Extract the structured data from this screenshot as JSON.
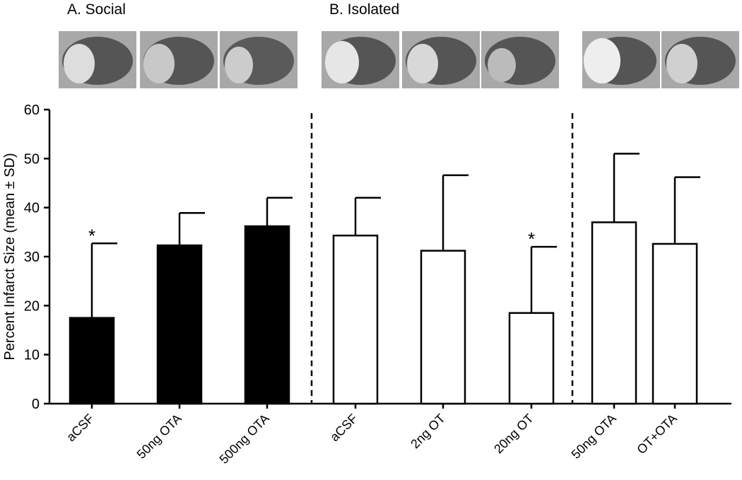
{
  "chart_data": {
    "type": "bar",
    "group_labels": [
      "A.  Social",
      "B.  Isolated"
    ],
    "y_label": "Percent Infarct Size (mean ± SD)",
    "categories": [
      "aCSF",
      "50ng OTA",
      "500ng OTA",
      "aCSF",
      "2ng OT",
      "20ng OT",
      "50ng OTA",
      "OT+OTA"
    ],
    "values": [
      17.5,
      32.3,
      36.2,
      34.3,
      31.2,
      18.5,
      37,
      32.6
    ],
    "errors": [
      15.2,
      6.6,
      5.8,
      7.7,
      15.4,
      13.5,
      14,
      13.6
    ],
    "colors": [
      "#000000",
      "#000000",
      "#000000",
      "#ffffff",
      "#ffffff",
      "#ffffff",
      "#ffffff",
      "#ffffff"
    ],
    "annotations": [
      {
        "text": "*",
        "category": 0
      },
      {
        "text": "*",
        "category": 5
      }
    ],
    "ylim": [
      0,
      60
    ],
    "yticks": [
      0,
      10,
      20,
      30,
      40,
      50,
      60
    ]
  }
}
